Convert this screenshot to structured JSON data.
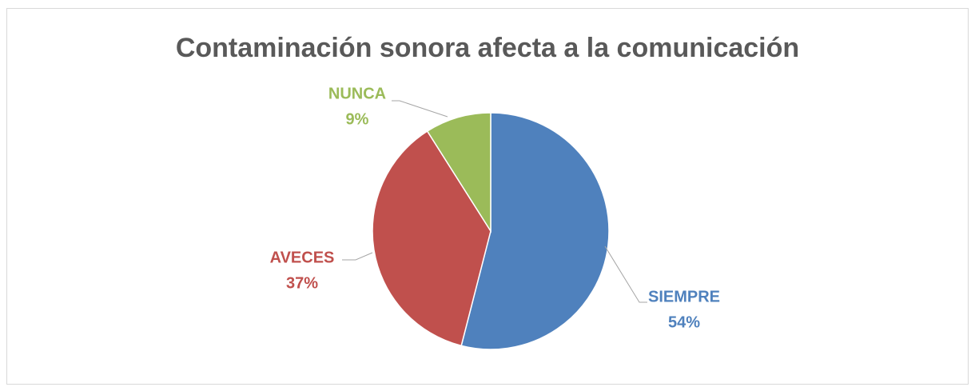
{
  "chart_data": {
    "type": "pie",
    "title": "Contaminación sonora afecta a la comunicación",
    "categories": [
      "SIEMPRE",
      "AVECES",
      "NUNCA"
    ],
    "values": [
      54,
      37,
      9
    ],
    "value_labels": [
      "54%",
      "37%",
      "9%"
    ],
    "colors": [
      "#4f81bd",
      "#c0504d",
      "#9bbb59"
    ]
  }
}
